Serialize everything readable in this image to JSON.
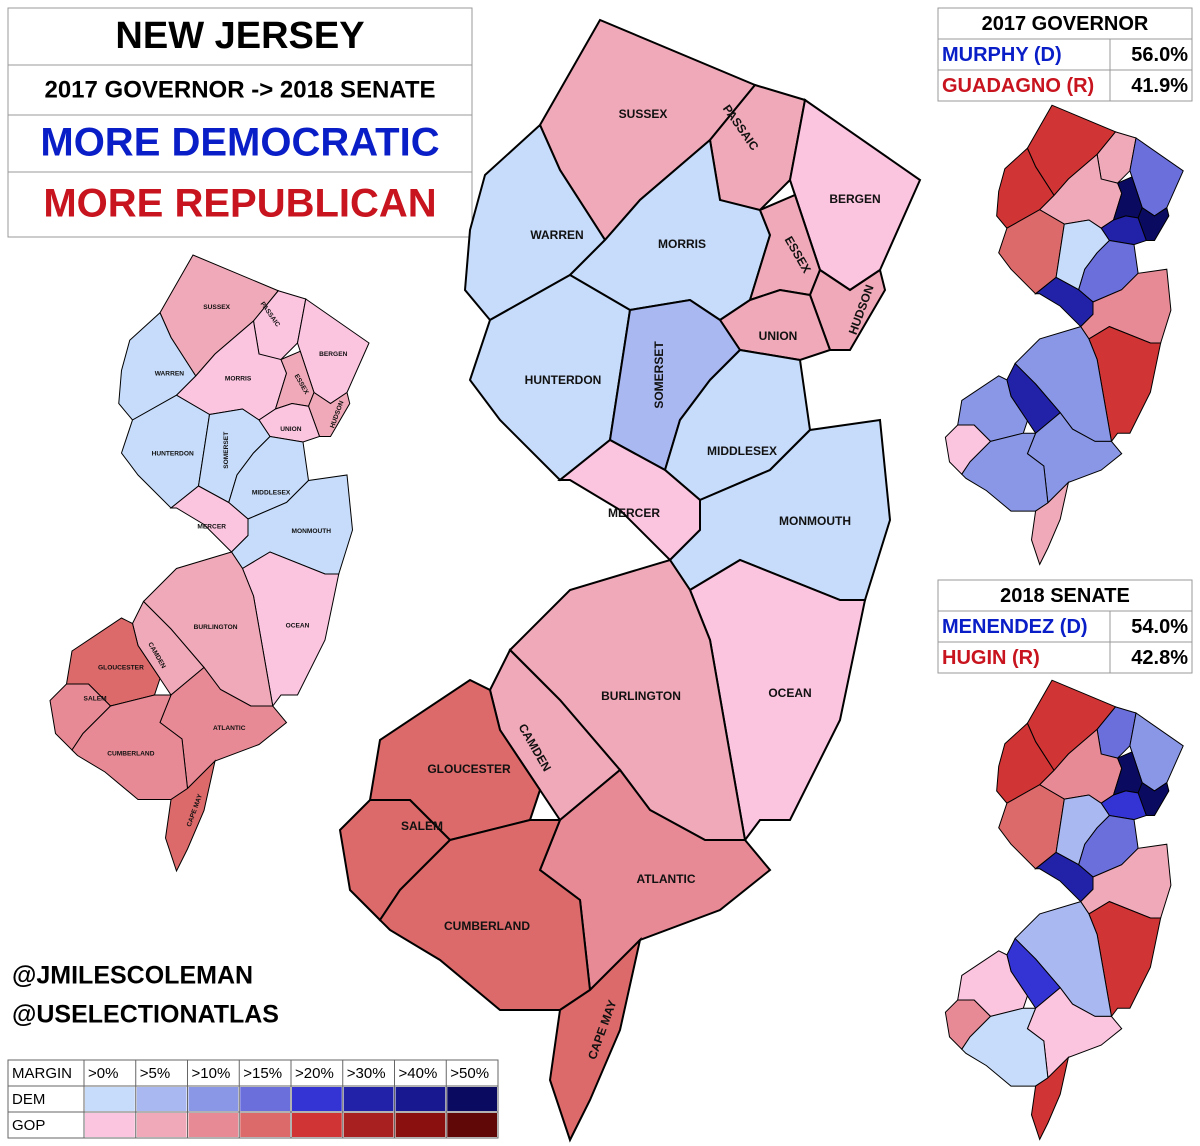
{
  "header": {
    "title": "NEW JERSEY",
    "subtitle": "2017 GOVERNOR -> 2018 SENATE",
    "dem_label": "MORE DEMOCRATIC",
    "gop_label": "MORE REPUBLICAN"
  },
  "counties": [
    "SUSSEX",
    "PASSAIC",
    "BERGEN",
    "WARREN",
    "MORRIS",
    "ESSEX",
    "HUDSON",
    "UNION",
    "HUNTERDON",
    "SOMERSET",
    "MIDDLESEX",
    "MERCER",
    "MONMOUTH",
    "OCEAN",
    "BURLINGTON",
    "CAMDEN",
    "GLOUCESTER",
    "SALEM",
    "ATLANTIC",
    "CUMBERLAND",
    "CAPE MAY"
  ],
  "results": [
    {
      "title": "2017 GOVERNOR",
      "rows": [
        [
          "MURPHY (D)",
          "56.0%"
        ],
        [
          "GUADAGNO (R)",
          "41.9%"
        ]
      ]
    },
    {
      "title": "2018 SENATE",
      "rows": [
        [
          "MENENDEZ (D)",
          "54.0%"
        ],
        [
          "HUGIN (R)",
          "42.8%"
        ]
      ]
    }
  ],
  "credits": [
    "@JMILESCOLEMAN",
    "@USELECTIONATLAS"
  ],
  "legend": {
    "header": "MARGIN",
    "bins": [
      ">0%",
      ">5%",
      ">10%",
      ">15%",
      ">20%",
      ">30%",
      ">40%",
      ">50%"
    ],
    "rows": [
      {
        "label": "DEM",
        "colors": [
          "#c6dcfa",
          "#a9b8f0",
          "#8a97e6",
          "#6a6fdc",
          "#3434d4",
          "#2222a8",
          "#181890",
          "#0a0a60"
        ]
      },
      {
        "label": "GOP",
        "colors": [
          "#fbc4df",
          "#f0a9b8",
          "#e88a95",
          "#dc6a6a",
          "#d03434",
          "#a82020",
          "#8a1010",
          "#600808"
        ]
      }
    ]
  }
}
